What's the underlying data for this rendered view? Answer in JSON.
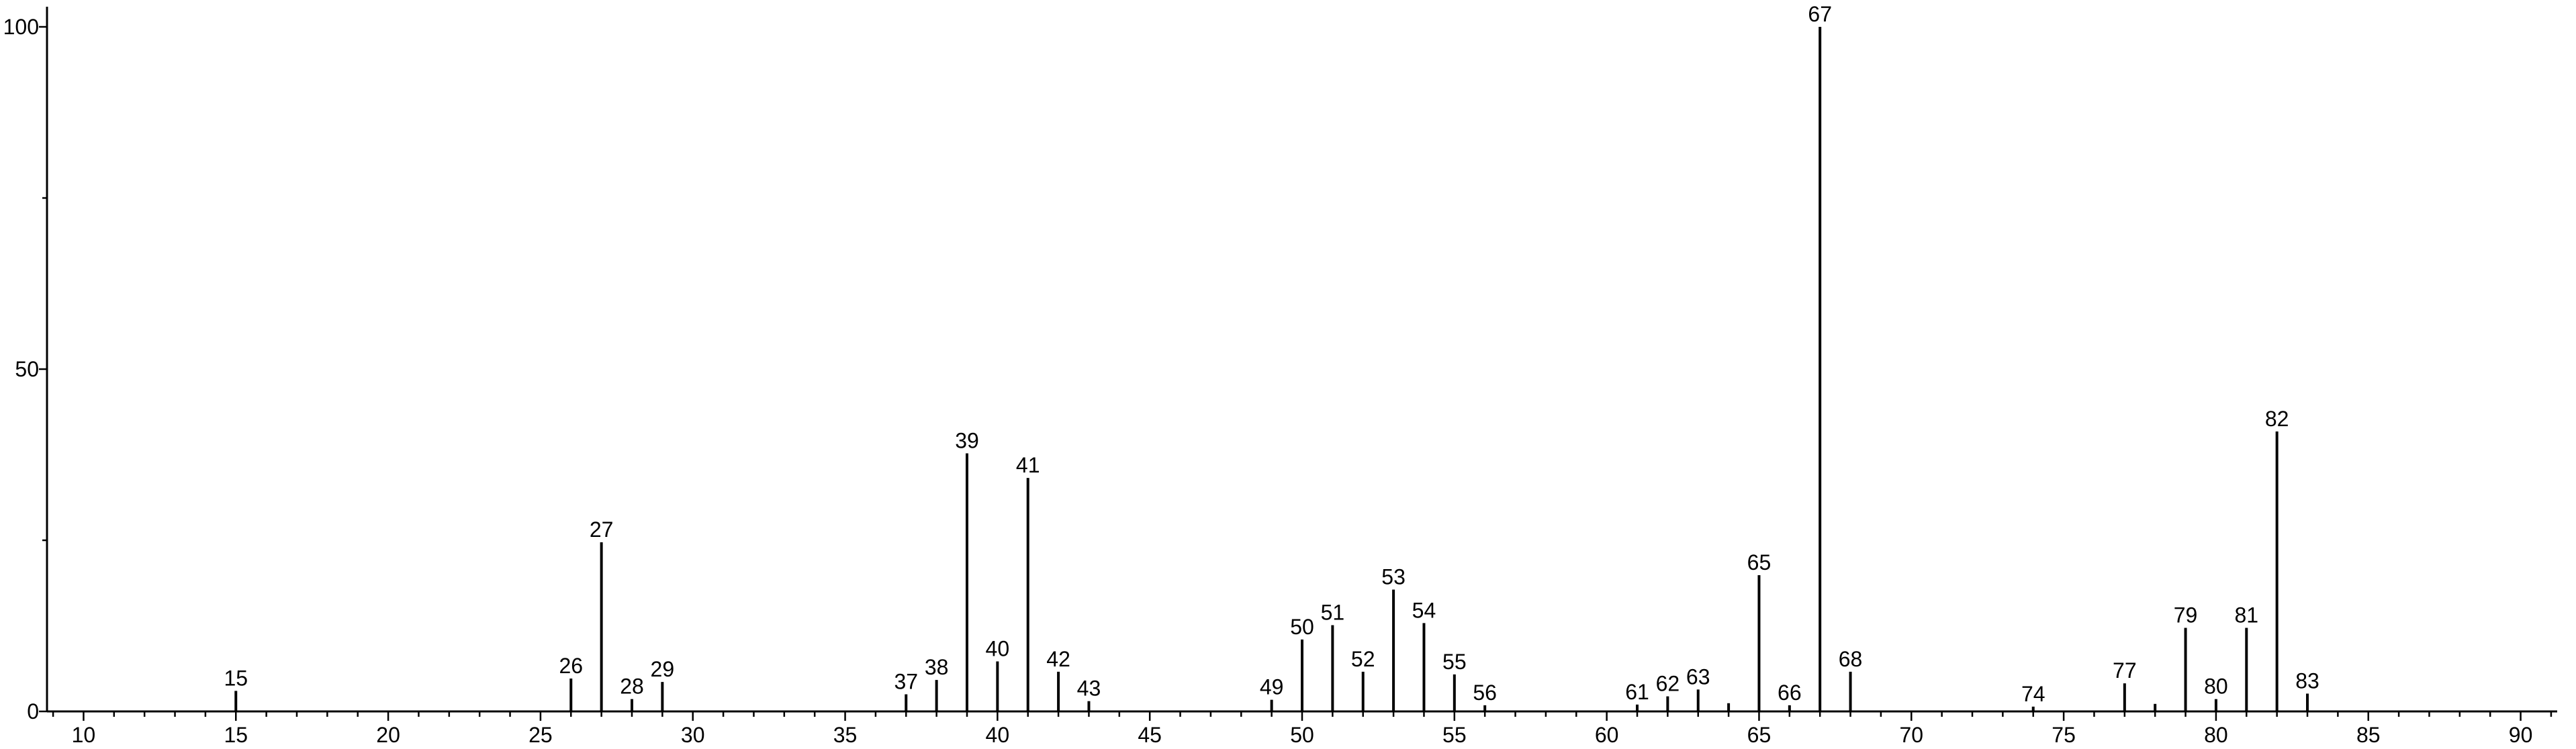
{
  "chart_data": {
    "type": "bar",
    "title": "",
    "xlabel": "",
    "ylabel": "",
    "xlim": [
      8.8,
      91.2
    ],
    "ylim": [
      0,
      100
    ],
    "x_major_ticks": [
      10,
      15,
      20,
      25,
      30,
      35,
      40,
      45,
      50,
      55,
      60,
      65,
      70,
      75,
      80,
      85,
      90
    ],
    "y_major_ticks": [
      0,
      50,
      100
    ],
    "grid": false,
    "legend": "none",
    "peaks": [
      {
        "mz": 15,
        "intensity": 3.0,
        "label": "15"
      },
      {
        "mz": 26,
        "intensity": 4.8,
        "label": "26"
      },
      {
        "mz": 27,
        "intensity": 24.7,
        "label": "27"
      },
      {
        "mz": 28,
        "intensity": 1.8,
        "label": "28"
      },
      {
        "mz": 29,
        "intensity": 4.3,
        "label": "29"
      },
      {
        "mz": 37,
        "intensity": 2.5,
        "label": "37"
      },
      {
        "mz": 38,
        "intensity": 4.6,
        "label": "38"
      },
      {
        "mz": 39,
        "intensity": 37.7,
        "label": "39"
      },
      {
        "mz": 40,
        "intensity": 7.3,
        "label": "40"
      },
      {
        "mz": 41,
        "intensity": 34.1,
        "label": "41"
      },
      {
        "mz": 42,
        "intensity": 5.8,
        "label": "42"
      },
      {
        "mz": 43,
        "intensity": 1.5,
        "label": "43"
      },
      {
        "mz": 49,
        "intensity": 1.7,
        "label": "49"
      },
      {
        "mz": 50,
        "intensity": 10.5,
        "label": "50"
      },
      {
        "mz": 51,
        "intensity": 12.6,
        "label": "51"
      },
      {
        "mz": 52,
        "intensity": 5.8,
        "label": "52"
      },
      {
        "mz": 53,
        "intensity": 17.8,
        "label": "53"
      },
      {
        "mz": 54,
        "intensity": 12.9,
        "label": "54"
      },
      {
        "mz": 55,
        "intensity": 5.4,
        "label": "55"
      },
      {
        "mz": 56,
        "intensity": 0.9,
        "label": "56"
      },
      {
        "mz": 61,
        "intensity": 1.0,
        "label": "61"
      },
      {
        "mz": 62,
        "intensity": 2.2,
        "label": "62"
      },
      {
        "mz": 63,
        "intensity": 3.2,
        "label": "63"
      },
      {
        "mz": 64,
        "intensity": 1.2,
        "label": ""
      },
      {
        "mz": 65,
        "intensity": 19.9,
        "label": "65"
      },
      {
        "mz": 66,
        "intensity": 0.9,
        "label": "66"
      },
      {
        "mz": 67,
        "intensity": 100.0,
        "label": "67"
      },
      {
        "mz": 68,
        "intensity": 5.8,
        "label": "68"
      },
      {
        "mz": 74,
        "intensity": 0.7,
        "label": "74"
      },
      {
        "mz": 77,
        "intensity": 4.1,
        "label": "77"
      },
      {
        "mz": 78,
        "intensity": 1.1,
        "label": ""
      },
      {
        "mz": 79,
        "intensity": 12.2,
        "label": "79"
      },
      {
        "mz": 80,
        "intensity": 1.8,
        "label": "80"
      },
      {
        "mz": 81,
        "intensity": 12.2,
        "label": "81"
      },
      {
        "mz": 82,
        "intensity": 40.9,
        "label": "82"
      },
      {
        "mz": 83,
        "intensity": 2.6,
        "label": "83"
      }
    ]
  }
}
